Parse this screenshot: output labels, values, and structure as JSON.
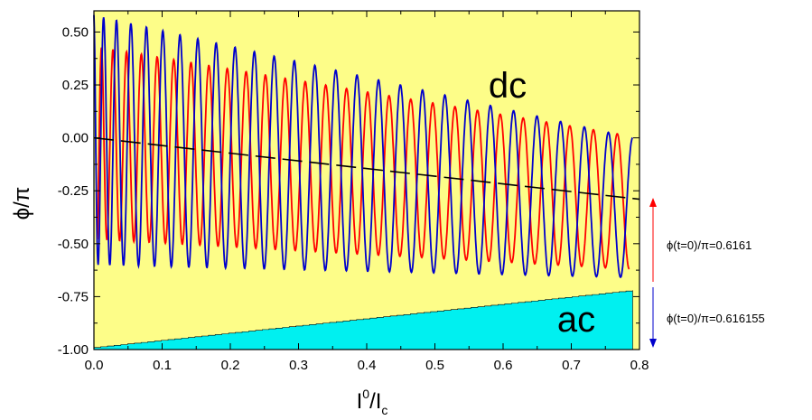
{
  "chart_data": {
    "type": "line",
    "title": "",
    "xlabel_main": "I",
    "xlabel_sup": "0",
    "xlabel_mid": "/I",
    "xlabel_sub": "c",
    "ylabel": "ϕ/π",
    "xlim": [
      0.0,
      0.8
    ],
    "ylim": [
      -1.0,
      0.6
    ],
    "x_ticks": [
      0.0,
      0.1,
      0.2,
      0.3,
      0.4,
      0.5,
      0.6,
      0.7,
      0.8
    ],
    "x_tick_labels": [
      "0.0",
      "0.1",
      "0.2",
      "0.3",
      "0.4",
      "0.5",
      "0.6",
      "0.7",
      "0.8"
    ],
    "y_ticks": [
      -1.0,
      -0.75,
      -0.5,
      -0.25,
      0.0,
      0.25,
      0.5
    ],
    "y_tick_labels": [
      "-1.00",
      "-0.75",
      "-0.50",
      "-0.25",
      "0.00",
      "0.25",
      "0.50"
    ],
    "regions": {
      "dc": {
        "label": "dc",
        "color": "#fdfd88"
      },
      "ac": {
        "label": "ac",
        "color": "#00f0f0"
      },
      "boundary": {
        "x": [
          0.0,
          0.79
        ],
        "y": [
          -0.99,
          -0.72
        ]
      }
    },
    "series": [
      {
        "color": "#ff0000",
        "x_start": 0.005,
        "x_end": 0.785,
        "center_start": 0.02,
        "center_end": -0.25,
        "top_start": 0.43,
        "top_end": 0.01,
        "bottom_start": -0.48,
        "bottom_end": -0.62,
        "n_oscillations": 27
      },
      {
        "color": "#0000cc",
        "x_start": 0.0,
        "x_end": 0.79,
        "center_start": 0.0,
        "center_end": -0.28,
        "top_start": 0.58,
        "top_end": 0.0,
        "bottom_start": -0.6,
        "bottom_end": -0.66,
        "n_oscillations": 27
      },
      {
        "color": "#000000",
        "dashed": true,
        "x": [
          0.0,
          0.8
        ],
        "y": [
          0.0,
          -0.29
        ]
      }
    ],
    "annotations": [
      {
        "text": "ϕ(t=0)/π=0.6161",
        "arrow_color": "#ff0000",
        "direction": "up"
      },
      {
        "text": "ϕ(t=0)/π=0.616155",
        "arrow_color": "#0000cc",
        "direction": "down"
      }
    ]
  }
}
